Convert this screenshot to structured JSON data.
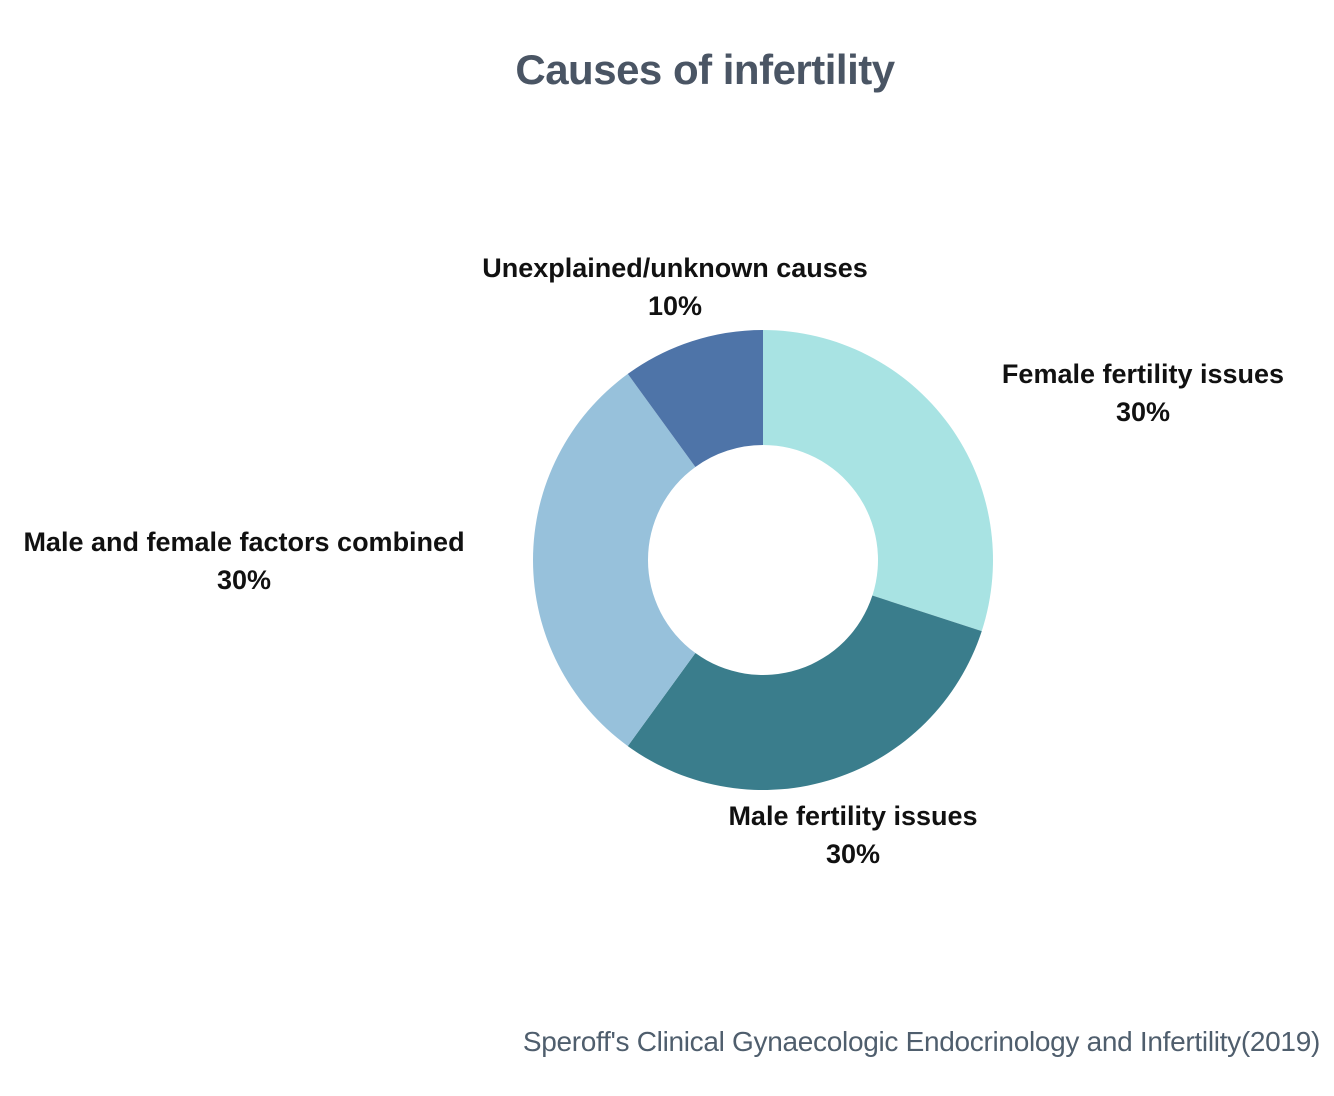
{
  "chart_data": {
    "type": "pie",
    "variant": "donut",
    "title": "Causes of infertility",
    "inner_radius_ratio": 0.5,
    "start_angle_deg": 0,
    "direction": "clockwise",
    "legend": "none",
    "slices": [
      {
        "label": "Female fertility issues",
        "value": 30,
        "pct_label": "30%",
        "color": "#a8e3e3"
      },
      {
        "label": "Male fertility issues",
        "value": 30,
        "pct_label": "30%",
        "color": "#3a7d8c"
      },
      {
        "label": "Male and female factors combined",
        "value": 30,
        "pct_label": "30%",
        "color": "#97c1db"
      },
      {
        "label": "Unexplained/unknown causes",
        "value": 10,
        "pct_label": "10%",
        "color": "#4e74a8"
      }
    ],
    "source": "Speroff's Clinical Gynaecologic Endocrinology and Infertility(2019)",
    "text_color": "#111111",
    "title_color": "#4a5564",
    "source_color": "#4f5e6d",
    "background": "#ffffff"
  }
}
